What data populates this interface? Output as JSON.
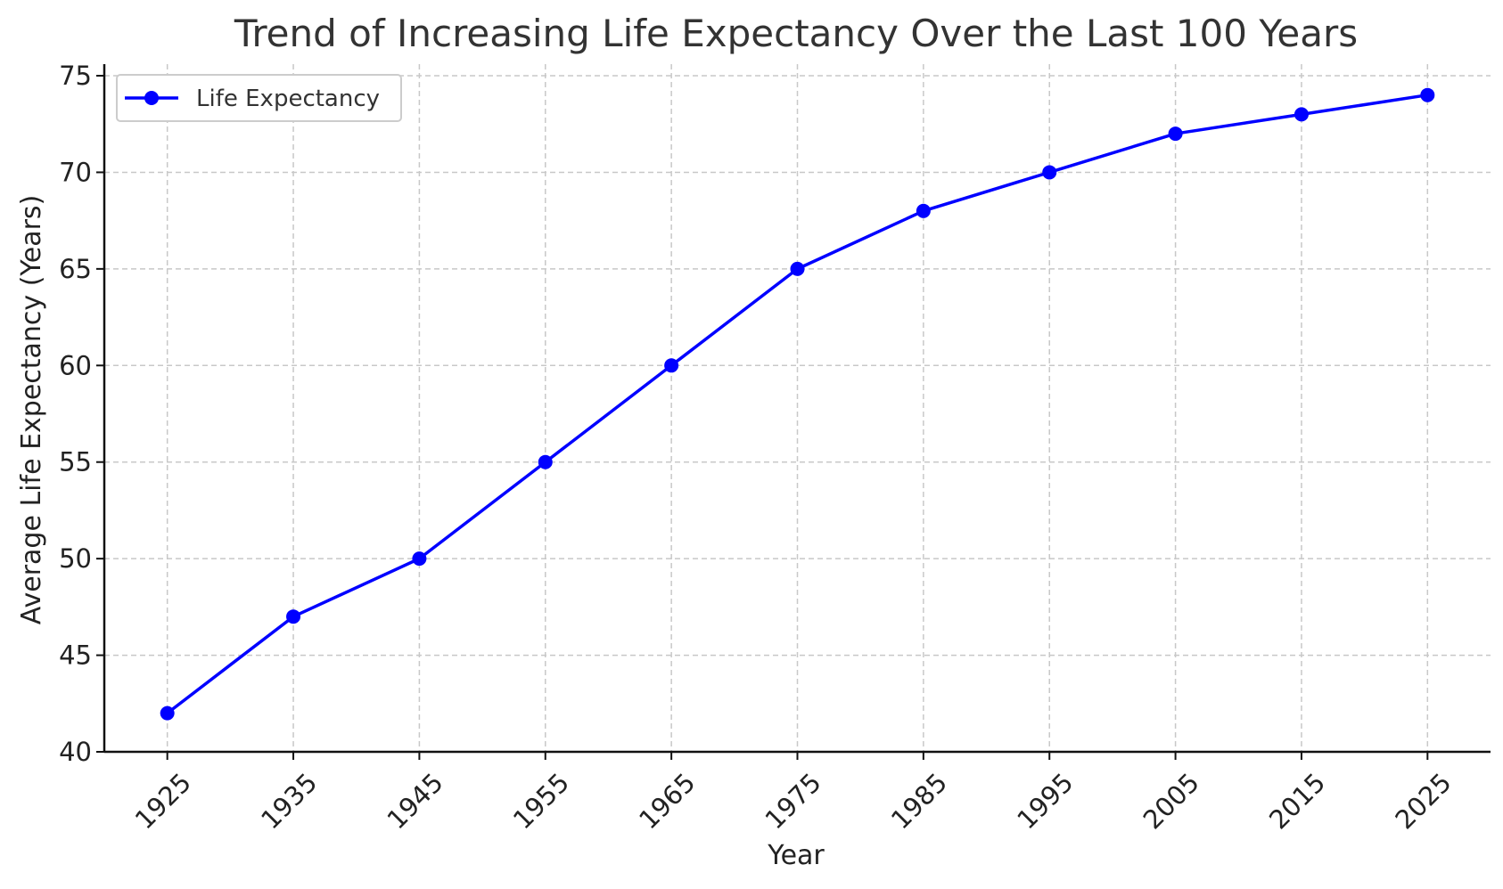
{
  "chart_data": {
    "type": "line",
    "title": "Trend of Increasing Life Expectancy Over the Last 100 Years",
    "xlabel": "Year",
    "ylabel": "Average Life Expectancy (Years)",
    "x": [
      1925,
      1935,
      1945,
      1955,
      1965,
      1975,
      1985,
      1995,
      2005,
      2015,
      2025
    ],
    "x_tick_labels": [
      "1925",
      "1935",
      "1945",
      "1955",
      "1965",
      "1975",
      "1985",
      "1995",
      "2005",
      "2015",
      "2025"
    ],
    "y_ticks": [
      40,
      45,
      50,
      55,
      60,
      65,
      70,
      75
    ],
    "y_tick_labels": [
      "40",
      "45",
      "50",
      "55",
      "60",
      "65",
      "70",
      "75"
    ],
    "xlim": [
      1920,
      2030
    ],
    "ylim": [
      40,
      75.6
    ],
    "series": [
      {
        "name": "Life Expectancy",
        "values": [
          42,
          47,
          50,
          55,
          60,
          65,
          68,
          70,
          72,
          73,
          74
        ],
        "color": "#0000ff",
        "marker": "circle"
      }
    ],
    "grid": true,
    "legend_position": "top-left",
    "x_tick_rotation": 45
  }
}
